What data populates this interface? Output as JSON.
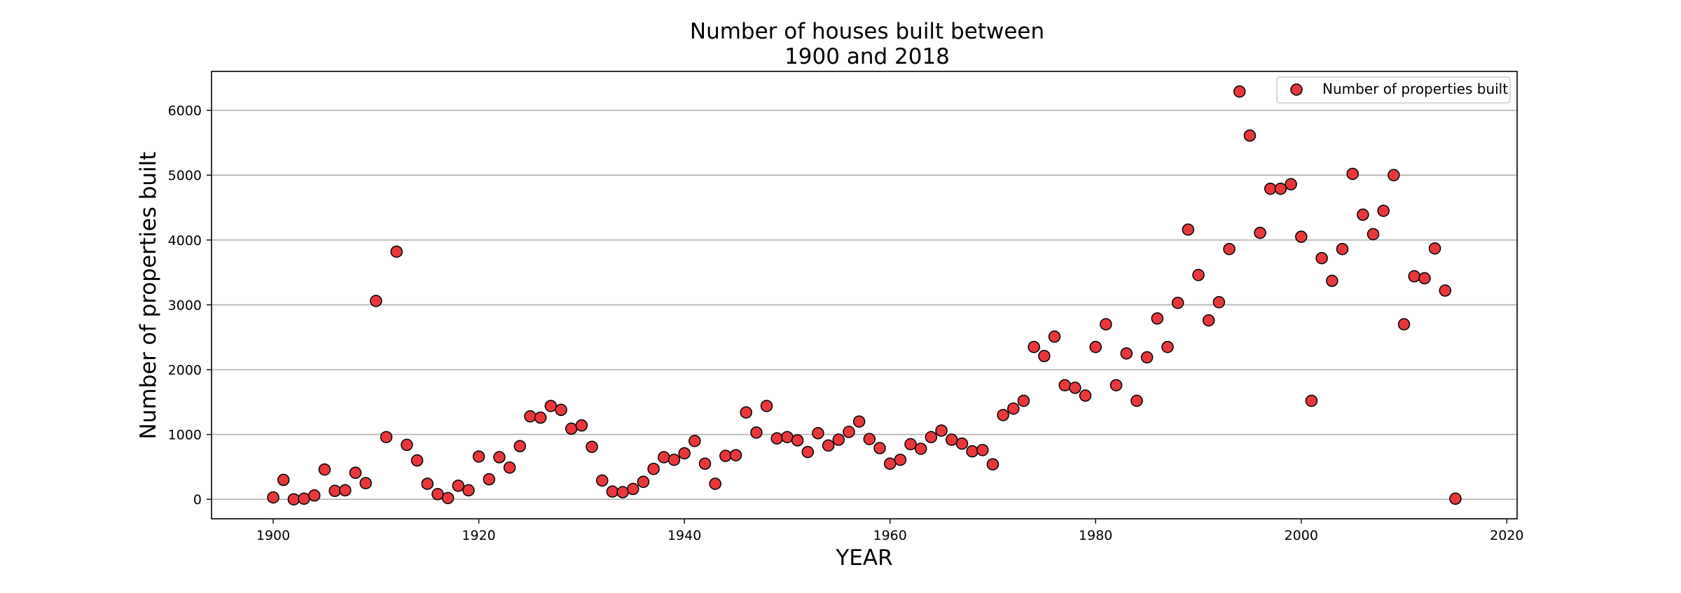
{
  "chart_data": {
    "type": "scatter",
    "title_lines": [
      "Number of houses built between",
      "1900 and 2018"
    ],
    "xlabel": "YEAR",
    "ylabel": "Number of properties built",
    "xlim": [
      1894,
      2021
    ],
    "ylim": [
      -300,
      6600
    ],
    "xticks": [
      1900,
      1920,
      1940,
      1960,
      1980,
      2000,
      2020
    ],
    "yticks": [
      0,
      1000,
      2000,
      3000,
      4000,
      5000,
      6000
    ],
    "grid": "horizontal",
    "legend_position": "top-right",
    "marker_color": "#e8383b",
    "marker_edge_color": "#000000",
    "series": [
      {
        "name": "Number of properties built",
        "x": [
          1900,
          1901,
          1902,
          1903,
          1904,
          1905,
          1906,
          1907,
          1908,
          1909,
          1910,
          1911,
          1912,
          1913,
          1914,
          1915,
          1916,
          1917,
          1918,
          1919,
          1920,
          1921,
          1922,
          1923,
          1924,
          1925,
          1926,
          1927,
          1928,
          1929,
          1930,
          1931,
          1932,
          1933,
          1934,
          1935,
          1936,
          1937,
          1938,
          1939,
          1940,
          1941,
          1942,
          1943,
          1944,
          1945,
          1946,
          1947,
          1948,
          1949,
          1950,
          1951,
          1952,
          1953,
          1954,
          1955,
          1956,
          1957,
          1958,
          1959,
          1960,
          1961,
          1962,
          1963,
          1964,
          1965,
          1966,
          1967,
          1968,
          1969,
          1970,
          1971,
          1972,
          1973,
          1974,
          1975,
          1976,
          1977,
          1978,
          1979,
          1980,
          1981,
          1982,
          1983,
          1984,
          1985,
          1986,
          1987,
          1988,
          1989,
          1990,
          1991,
          1992,
          1993,
          1994,
          1995,
          1996,
          1997,
          1998,
          1999,
          2000,
          2001,
          2002,
          2003,
          2004,
          2005,
          2006,
          2007,
          2008,
          2009,
          2010,
          2011,
          2012,
          2013,
          2014,
          2015
        ],
        "y": [
          30,
          300,
          0,
          10,
          60,
          460,
          130,
          140,
          410,
          250,
          3060,
          960,
          3820,
          840,
          600,
          240,
          80,
          20,
          210,
          140,
          660,
          310,
          650,
          490,
          820,
          1280,
          1260,
          1440,
          1380,
          1090,
          1140,
          810,
          290,
          120,
          110,
          160,
          270,
          470,
          650,
          610,
          710,
          900,
          550,
          240,
          670,
          680,
          1340,
          1030,
          1440,
          940,
          960,
          910,
          730,
          1020,
          830,
          920,
          1040,
          1200,
          930,
          790,
          550,
          610,
          850,
          780,
          960,
          1060,
          920,
          860,
          740,
          760,
          540,
          1300,
          1400,
          1520,
          2350,
          2210,
          2510,
          1760,
          1720,
          1600,
          2350,
          2700,
          1760,
          2250,
          1520,
          2190,
          2790,
          2350,
          3030,
          4160,
          3460,
          2760,
          3040,
          3860,
          6290,
          5610,
          4110,
          4790,
          4790,
          4860,
          4050,
          1520,
          3720,
          3370,
          3860,
          5020,
          4390,
          4090,
          4450,
          5000,
          2700,
          3440,
          3410,
          3870,
          3220,
          10
        ]
      }
    ]
  }
}
